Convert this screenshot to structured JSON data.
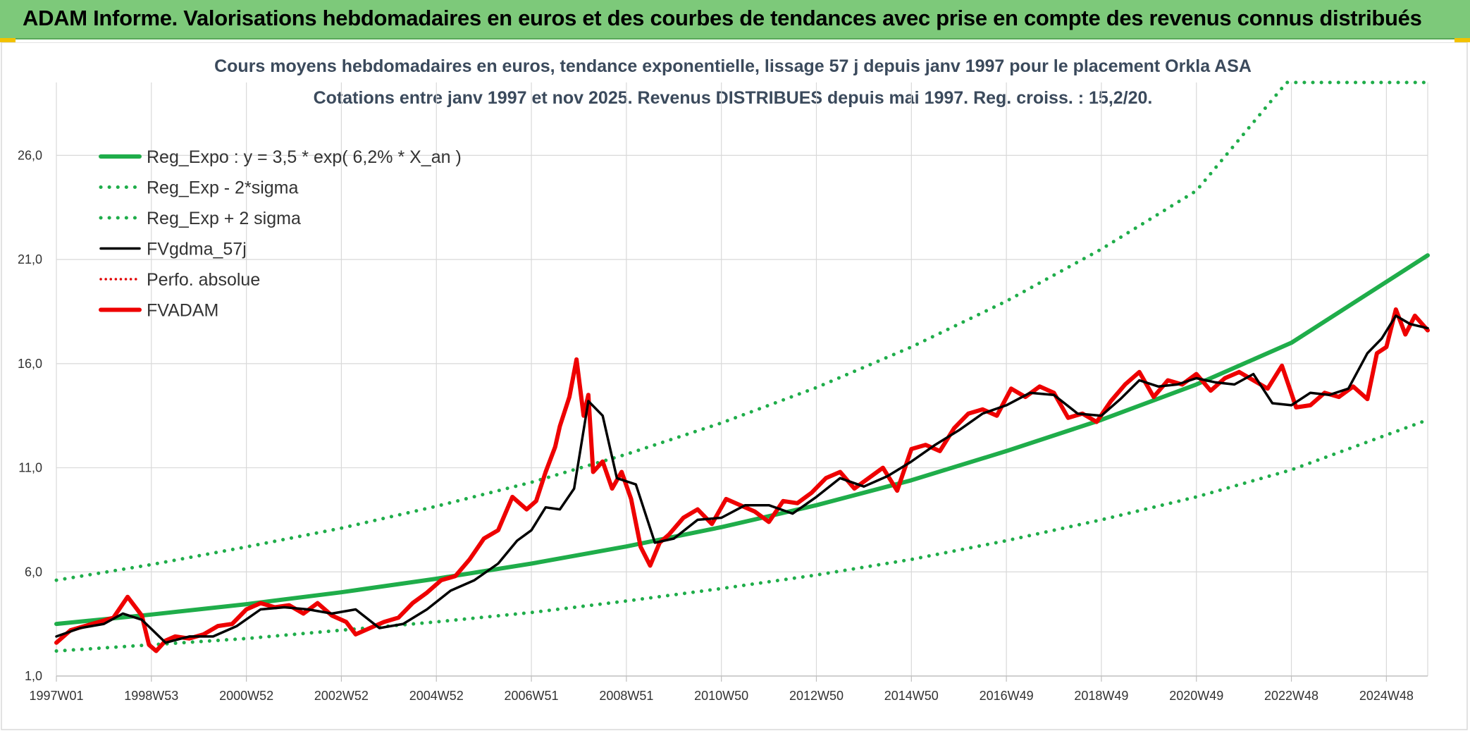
{
  "header": {
    "title": "ADAM Informe. Valorisations hebdomadaires en euros et des courbes de tendances avec prise en compte des revenus connus distribués"
  },
  "chart_data": {
    "type": "line",
    "title": "Cours moyens hebdomadaires en euros, tendance exponentielle, lissage 57 j depuis janv 1997 pour le placement Orkla ASA",
    "subtitle": "Cotations entre janv 1997 et nov 2025. Revenus DISTRIBUES depuis mai 1997. Reg. croiss. : 15,2/20.",
    "xlabel": "",
    "ylabel": "",
    "x_range": [
      1997.0,
      2025.87
    ],
    "ylim": [
      1.0,
      29.5
    ],
    "y_ticks": [
      1.0,
      6.0,
      11.0,
      16.0,
      21.0,
      26.0
    ],
    "y_tick_labels": [
      "1,0",
      "6,0",
      "11,0",
      "16,0",
      "21,0",
      "26,0"
    ],
    "x_tick_labels": [
      "1997W01",
      "1998W53",
      "2000W52",
      "2002W52",
      "2004W52",
      "2006W51",
      "2008W51",
      "2010W50",
      "2012W50",
      "2014W50",
      "2016W49",
      "2018W49",
      "2020W49",
      "2022W48",
      "2024W48"
    ],
    "x_tick_years": [
      1997.0,
      1999.0,
      2001.0,
      2003.0,
      2005.0,
      2007.0,
      2009.0,
      2011.0,
      2013.0,
      2015.0,
      2017.0,
      2019.0,
      2021.0,
      2023.0,
      2025.0
    ],
    "grid": true,
    "legend_position": "top-left",
    "series": [
      {
        "name": "Reg_Expo : y = 3,5 * exp( 6,2% *  X_an )",
        "color": "#1fad4a",
        "style": "solid-thick",
        "x": [
          1997.0,
          1999.0,
          2001.0,
          2003.0,
          2005.0,
          2007.0,
          2009.0,
          2011.0,
          2013.0,
          2015.0,
          2017.0,
          2019.0,
          2021.0,
          2023.0,
          2025.87
        ],
        "values": [
          3.5,
          3.95,
          4.45,
          5.02,
          5.67,
          6.4,
          7.22,
          8.15,
          9.2,
          10.4,
          11.8,
          13.3,
          15.0,
          17.0,
          21.2
        ]
      },
      {
        "name": "Reg_Exp - 2*sigma",
        "color": "#1fad4a",
        "style": "dotted",
        "x": [
          1997.0,
          1999.0,
          2001.0,
          2003.0,
          2005.0,
          2007.0,
          2009.0,
          2011.0,
          2013.0,
          2015.0,
          2017.0,
          2019.0,
          2021.0,
          2023.0,
          2025.87
        ],
        "values": [
          2.2,
          2.5,
          2.8,
          3.2,
          3.6,
          4.05,
          4.6,
          5.2,
          5.85,
          6.6,
          7.5,
          8.5,
          9.6,
          10.9,
          13.3
        ]
      },
      {
        "name": "Reg_Exp + 2 sigma",
        "color": "#1fad4a",
        "style": "dotted",
        "x": [
          1997.0,
          1999.0,
          2001.0,
          2003.0,
          2005.0,
          2007.0,
          2009.0,
          2011.0,
          2013.0,
          2015.0,
          2017.0,
          2019.0,
          2021.0,
          2022.9,
          2023.0,
          2025.87
        ],
        "values": [
          5.6,
          6.35,
          7.2,
          8.1,
          9.15,
          10.3,
          11.65,
          13.15,
          14.85,
          16.8,
          19.0,
          21.5,
          24.3,
          29.5,
          29.5,
          29.5
        ]
      },
      {
        "name": "FVgdma_57j",
        "color": "#000000",
        "style": "solid",
        "x": [
          1997.0,
          1997.5,
          1998.0,
          1998.4,
          1998.8,
          1999.3,
          1999.8,
          2000.3,
          2000.8,
          2001.3,
          2001.8,
          2002.3,
          2002.8,
          2003.3,
          2003.8,
          2004.3,
          2004.8,
          2005.3,
          2005.8,
          2006.3,
          2006.7,
          2007.0,
          2007.3,
          2007.6,
          2007.9,
          2008.2,
          2008.5,
          2008.8,
          2009.2,
          2009.6,
          2010.0,
          2010.5,
          2011.0,
          2011.5,
          2012.0,
          2012.5,
          2013.0,
          2013.5,
          2014.0,
          2014.5,
          2015.0,
          2015.5,
          2016.0,
          2016.5,
          2017.0,
          2017.5,
          2018.0,
          2018.5,
          2019.0,
          2019.4,
          2019.8,
          2020.2,
          2020.6,
          2021.0,
          2021.4,
          2021.8,
          2022.2,
          2022.6,
          2023.0,
          2023.4,
          2023.8,
          2024.2,
          2024.6,
          2024.9,
          2025.2,
          2025.5,
          2025.87
        ],
        "values": [
          2.9,
          3.3,
          3.5,
          4.0,
          3.7,
          2.6,
          2.9,
          2.9,
          3.4,
          4.2,
          4.3,
          4.2,
          4.0,
          4.2,
          3.3,
          3.5,
          4.2,
          5.1,
          5.6,
          6.4,
          7.5,
          8.0,
          9.1,
          9.0,
          10.0,
          14.2,
          13.5,
          10.5,
          10.2,
          7.4,
          7.6,
          8.5,
          8.6,
          9.2,
          9.2,
          8.8,
          9.6,
          10.5,
          10.1,
          10.6,
          11.3,
          12.1,
          12.8,
          13.6,
          14.0,
          14.6,
          14.5,
          13.6,
          13.5,
          14.3,
          15.2,
          14.9,
          15.0,
          15.3,
          15.1,
          15.0,
          15.5,
          14.1,
          14.0,
          14.6,
          14.5,
          14.8,
          16.5,
          17.2,
          18.3,
          17.9,
          17.7
        ]
      },
      {
        "name": "Perfo. absolue",
        "color": "#e00000",
        "style": "dotted",
        "x": [],
        "values": []
      },
      {
        "name": "FVADAM",
        "color": "#ee0000",
        "style": "solid-thick",
        "x": [
          1997.0,
          1997.3,
          1997.6,
          1997.9,
          1998.2,
          1998.5,
          1998.8,
          1998.95,
          1999.1,
          1999.3,
          1999.5,
          1999.8,
          2000.1,
          2000.4,
          2000.7,
          2001.0,
          2001.3,
          2001.6,
          2001.9,
          2002.2,
          2002.5,
          2002.8,
          2003.1,
          2003.3,
          2003.6,
          2003.9,
          2004.2,
          2004.5,
          2004.8,
          2005.1,
          2005.4,
          2005.7,
          2006.0,
          2006.3,
          2006.6,
          2006.9,
          2007.1,
          2007.3,
          2007.5,
          2007.6,
          2007.8,
          2007.95,
          2008.1,
          2008.2,
          2008.3,
          2008.5,
          2008.7,
          2008.9,
          2009.1,
          2009.3,
          2009.5,
          2009.7,
          2009.9,
          2010.2,
          2010.5,
          2010.8,
          2011.1,
          2011.4,
          2011.7,
          2012.0,
          2012.3,
          2012.6,
          2012.9,
          2013.2,
          2013.5,
          2013.8,
          2014.1,
          2014.4,
          2014.7,
          2015.0,
          2015.3,
          2015.6,
          2015.9,
          2016.2,
          2016.5,
          2016.8,
          2017.1,
          2017.4,
          2017.7,
          2018.0,
          2018.3,
          2018.6,
          2018.9,
          2019.2,
          2019.5,
          2019.8,
          2020.1,
          2020.4,
          2020.7,
          2021.0,
          2021.3,
          2021.6,
          2021.9,
          2022.2,
          2022.5,
          2022.8,
          2023.1,
          2023.4,
          2023.7,
          2024.0,
          2024.3,
          2024.6,
          2024.8,
          2025.0,
          2025.2,
          2025.4,
          2025.6,
          2025.87
        ],
        "values": [
          2.6,
          3.2,
          3.4,
          3.6,
          3.8,
          4.8,
          3.9,
          2.5,
          2.2,
          2.7,
          2.9,
          2.8,
          3.0,
          3.4,
          3.5,
          4.2,
          4.5,
          4.3,
          4.4,
          4.0,
          4.5,
          3.9,
          3.6,
          3.0,
          3.3,
          3.6,
          3.8,
          4.5,
          5.0,
          5.6,
          5.8,
          6.6,
          7.6,
          8.0,
          9.6,
          9.0,
          9.4,
          10.8,
          12.0,
          13.0,
          14.4,
          16.2,
          13.5,
          14.5,
          10.8,
          11.3,
          10.0,
          10.8,
          9.5,
          7.2,
          6.3,
          7.4,
          7.8,
          8.6,
          9.0,
          8.3,
          9.5,
          9.2,
          8.9,
          8.4,
          9.4,
          9.3,
          9.8,
          10.5,
          10.8,
          10.0,
          10.5,
          11.0,
          9.9,
          11.9,
          12.1,
          11.8,
          12.9,
          13.6,
          13.8,
          13.5,
          14.8,
          14.4,
          14.9,
          14.6,
          13.4,
          13.6,
          13.2,
          14.2,
          15.0,
          15.6,
          14.4,
          15.2,
          15.0,
          15.5,
          14.7,
          15.3,
          15.6,
          15.2,
          14.8,
          15.9,
          13.9,
          14.0,
          14.6,
          14.4,
          14.9,
          14.3,
          16.5,
          16.8,
          18.6,
          17.4,
          18.3,
          17.6
        ]
      }
    ]
  }
}
